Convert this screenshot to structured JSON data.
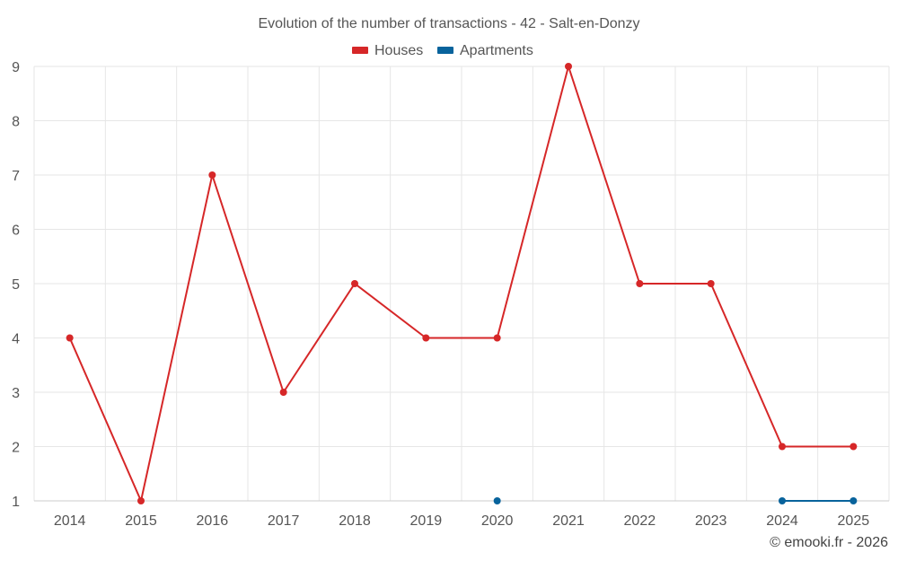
{
  "chart_data": {
    "type": "line",
    "title": "Evolution of the number of transactions - 42 - Salt-en-Donzy",
    "categories": [
      "2014",
      "2015",
      "2016",
      "2017",
      "2018",
      "2019",
      "2020",
      "2021",
      "2022",
      "2023",
      "2024",
      "2025"
    ],
    "series": [
      {
        "name": "Houses",
        "color": "#d62728",
        "values": [
          4,
          1,
          7,
          3,
          5,
          4,
          4,
          9,
          5,
          5,
          2,
          2
        ]
      },
      {
        "name": "Apartments",
        "color": "#08639c",
        "values": [
          null,
          null,
          null,
          null,
          null,
          null,
          1,
          null,
          null,
          null,
          1,
          1
        ]
      }
    ],
    "ylim": [
      1,
      9
    ],
    "yticks": [
      1,
      2,
      3,
      4,
      5,
      6,
      7,
      8,
      9
    ],
    "grid": true,
    "legend": "top-center",
    "credit": "© emooki.fr - 2026"
  }
}
